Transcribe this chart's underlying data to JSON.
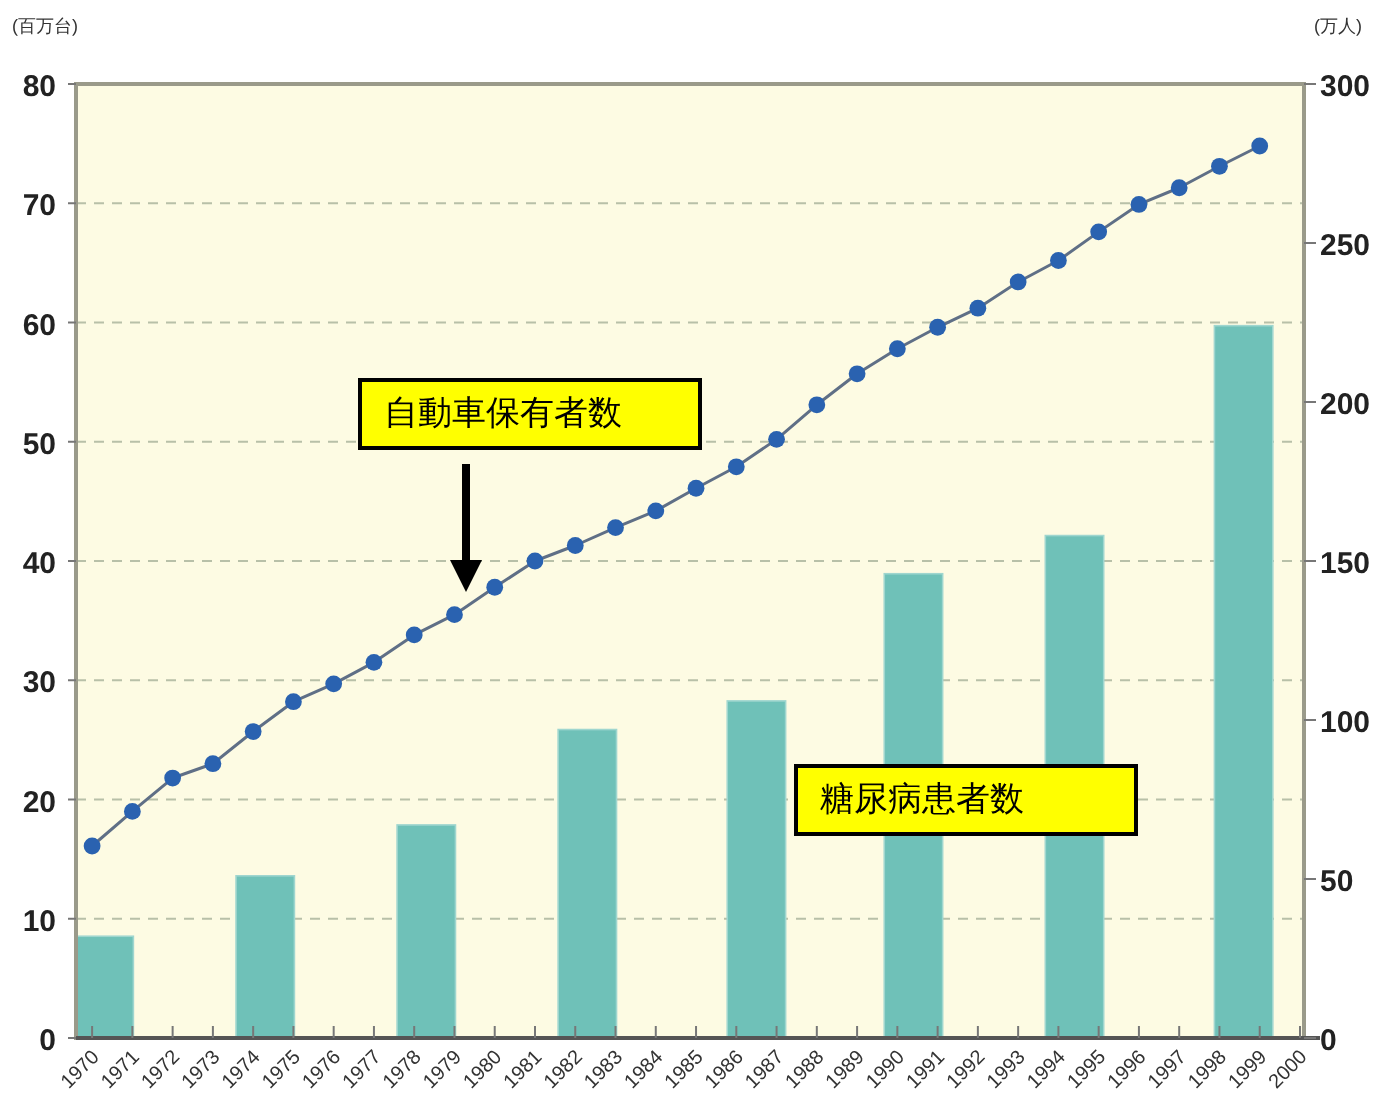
{
  "chart_data": {
    "type": "line",
    "ylabel": "(百万台)",
    "y2label": "(万人)",
    "xlim": [
      1969.6,
      2000.1
    ],
    "xticks": [
      1970,
      1971,
      1972,
      1973,
      1974,
      1975,
      1976,
      1977,
      1978,
      1979,
      1980,
      1981,
      1982,
      1983,
      1984,
      1985,
      1986,
      1987,
      1988,
      1989,
      1990,
      1991,
      1992,
      1993,
      1994,
      1995,
      1996,
      1997,
      1998,
      1999,
      2000
    ],
    "ylim": [
      0,
      80
    ],
    "yticks": [
      0,
      10,
      20,
      30,
      40,
      50,
      60,
      70,
      80
    ],
    "y2lim": [
      0,
      300
    ],
    "y2ticks": [
      0,
      50,
      100,
      150,
      200,
      250,
      300
    ],
    "grid": "y",
    "series": [
      {
        "type": "bar",
        "axis": "y2",
        "color": "#6fc1b8",
        "x": [
          1970.3,
          1974.3,
          1978.3,
          1982.3,
          1986.5,
          1990.4,
          1994.4,
          1998.6
        ],
        "values": [
          32,
          51,
          67,
          97,
          106,
          146,
          158,
          224
        ]
      },
      {
        "color": "#2a62b0",
        "marker": "circle",
        "line_style": "solid",
        "x": [
          1970,
          1971,
          1972,
          1973,
          1974,
          1975,
          1976,
          1977,
          1978,
          1979,
          1980,
          1981,
          1982,
          1983,
          1984,
          1985,
          1986,
          1987,
          1988,
          1989,
          1990,
          1991,
          1992,
          1993,
          1994,
          1995,
          1996,
          1997,
          1998,
          1999
        ],
        "values": [
          16.1,
          19.0,
          21.8,
          23.0,
          25.7,
          28.2,
          29.7,
          31.5,
          33.8,
          35.5,
          37.8,
          40.0,
          41.3,
          42.8,
          44.2,
          46.1,
          47.9,
          50.2,
          53.1,
          55.7,
          57.8,
          59.6,
          61.2,
          63.4,
          65.2,
          67.6,
          69.9,
          71.3,
          73.1,
          74.8
        ]
      }
    ],
    "annotations": [
      "自動車保有者数",
      "糖尿病患者数"
    ]
  }
}
